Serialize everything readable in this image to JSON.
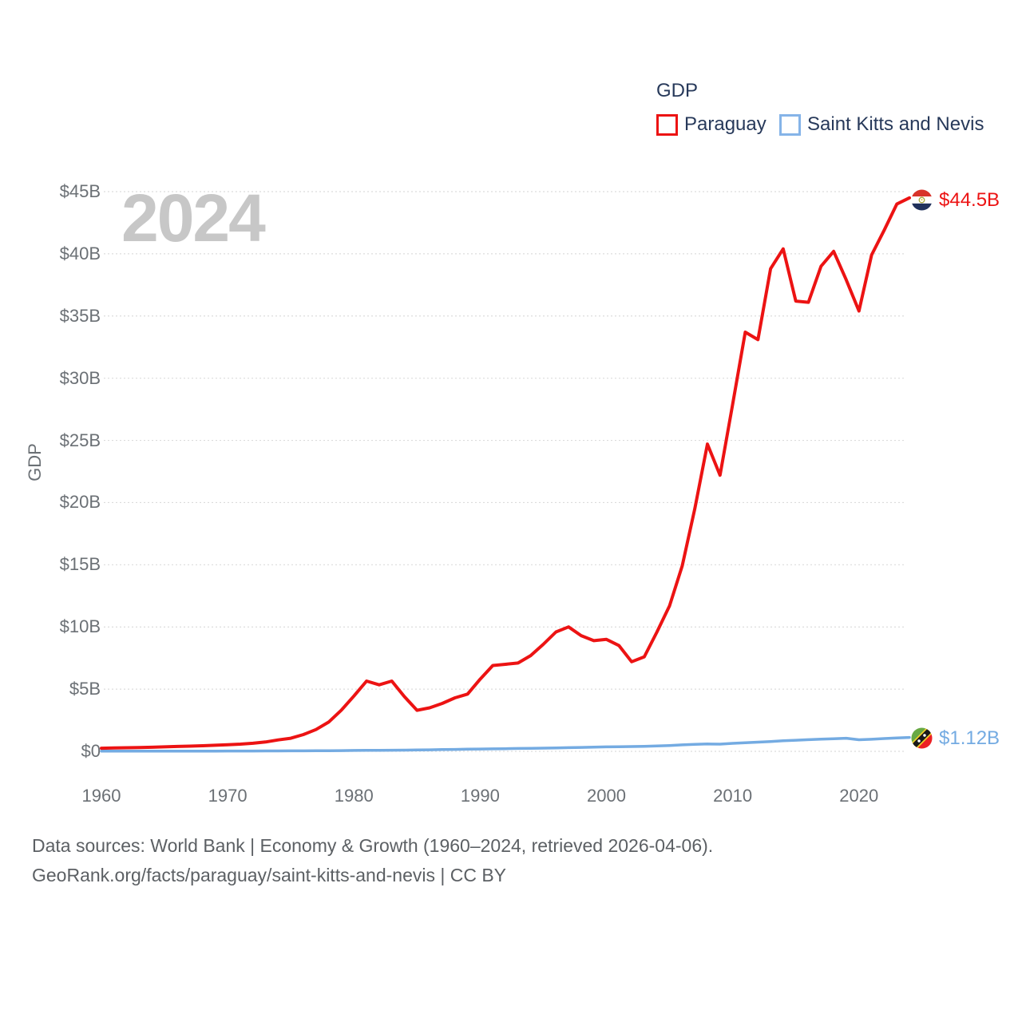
{
  "legend": {
    "title": "GDP",
    "items": [
      {
        "label": "Paraguay",
        "color": "#ec1313"
      },
      {
        "label": "Saint Kitts and Nevis",
        "color": "#85b4e8"
      }
    ]
  },
  "watermark": "2024",
  "y_axis": {
    "title": "GDP",
    "tick_labels": [
      "$45B",
      "$40B",
      "$35B",
      "$30B",
      "$25B",
      "$20B",
      "$15B",
      "$10B",
      "$5B",
      "$0"
    ],
    "tick_values": [
      45,
      40,
      35,
      30,
      25,
      20,
      15,
      10,
      5,
      0
    ]
  },
  "x_axis": {
    "tick_labels": [
      "1960",
      "1970",
      "1980",
      "1990",
      "2000",
      "2010",
      "2020"
    ],
    "tick_values": [
      1960,
      1970,
      1980,
      1990,
      2000,
      2010,
      2020
    ]
  },
  "end_labels": [
    {
      "series": "Paraguay",
      "value_label": "$44.5B",
      "flag": "paraguay-flag-icon"
    },
    {
      "series": "Saint Kitts and Nevis",
      "value_label": "$1.12B",
      "flag": "saint-kitts-and-nevis-flag-icon"
    }
  ],
  "footer": {
    "line1": "Data sources: World Bank | Economy & Growth (1960–2024, retrieved 2026-04-06).",
    "line2": "GeoRank.org/facts/paraguay/saint-kitts-and-nevis | CC BY"
  },
  "chart_data": {
    "type": "line",
    "title": "GDP",
    "ylabel": "GDP",
    "xlim": [
      1960,
      2024
    ],
    "ylim": [
      0,
      45
    ],
    "grid": "horizontal-dotted",
    "legend_position": "top-right",
    "x": [
      1960,
      1961,
      1962,
      1963,
      1964,
      1965,
      1966,
      1967,
      1968,
      1969,
      1970,
      1971,
      1972,
      1973,
      1974,
      1975,
      1976,
      1977,
      1978,
      1979,
      1980,
      1981,
      1982,
      1983,
      1984,
      1985,
      1986,
      1987,
      1988,
      1989,
      1990,
      1991,
      1992,
      1993,
      1994,
      1995,
      1996,
      1997,
      1998,
      1999,
      2000,
      2001,
      2002,
      2003,
      2004,
      2005,
      2006,
      2007,
      2008,
      2009,
      2010,
      2011,
      2012,
      2013,
      2014,
      2015,
      2016,
      2017,
      2018,
      2019,
      2020,
      2021,
      2022,
      2023,
      2024
    ],
    "series": [
      {
        "name": "Paraguay",
        "color": "#ec1313",
        "stroke_width": 4,
        "end_label": "$44.5B",
        "values": [
          0.25,
          0.27,
          0.29,
          0.31,
          0.33,
          0.36,
          0.39,
          0.42,
          0.45,
          0.49,
          0.53,
          0.58,
          0.65,
          0.75,
          0.92,
          1.05,
          1.35,
          1.75,
          2.35,
          3.3,
          4.45,
          5.65,
          5.35,
          5.65,
          4.4,
          3.3,
          3.5,
          3.85,
          4.3,
          4.6,
          5.8,
          6.9,
          7.0,
          7.1,
          7.7,
          8.6,
          9.6,
          10.0,
          9.3,
          8.9,
          9.0,
          8.5,
          7.2,
          7.6,
          9.6,
          11.7,
          14.9,
          19.5,
          24.7,
          22.2,
          27.9,
          33.7,
          33.1,
          38.8,
          40.4,
          36.2,
          36.1,
          39.0,
          40.2,
          37.9,
          35.4,
          39.9,
          41.9,
          44.0,
          44.5
        ]
      },
      {
        "name": "Saint Kitts and Nevis",
        "color": "#74abe2",
        "stroke_width": 3.5,
        "end_label": "$1.12B",
        "values": [
          0.012,
          0.013,
          0.014,
          0.015,
          0.016,
          0.017,
          0.018,
          0.019,
          0.021,
          0.022,
          0.023,
          0.025,
          0.027,
          0.03,
          0.034,
          0.037,
          0.04,
          0.045,
          0.051,
          0.059,
          0.068,
          0.076,
          0.083,
          0.09,
          0.099,
          0.108,
          0.122,
          0.139,
          0.157,
          0.172,
          0.185,
          0.197,
          0.213,
          0.228,
          0.242,
          0.256,
          0.275,
          0.298,
          0.316,
          0.336,
          0.36,
          0.373,
          0.385,
          0.4,
          0.432,
          0.47,
          0.52,
          0.56,
          0.59,
          0.58,
          0.64,
          0.69,
          0.74,
          0.79,
          0.85,
          0.89,
          0.94,
          0.98,
          1.01,
          1.05,
          0.93,
          0.97,
          1.03,
          1.08,
          1.12
        ]
      }
    ]
  }
}
